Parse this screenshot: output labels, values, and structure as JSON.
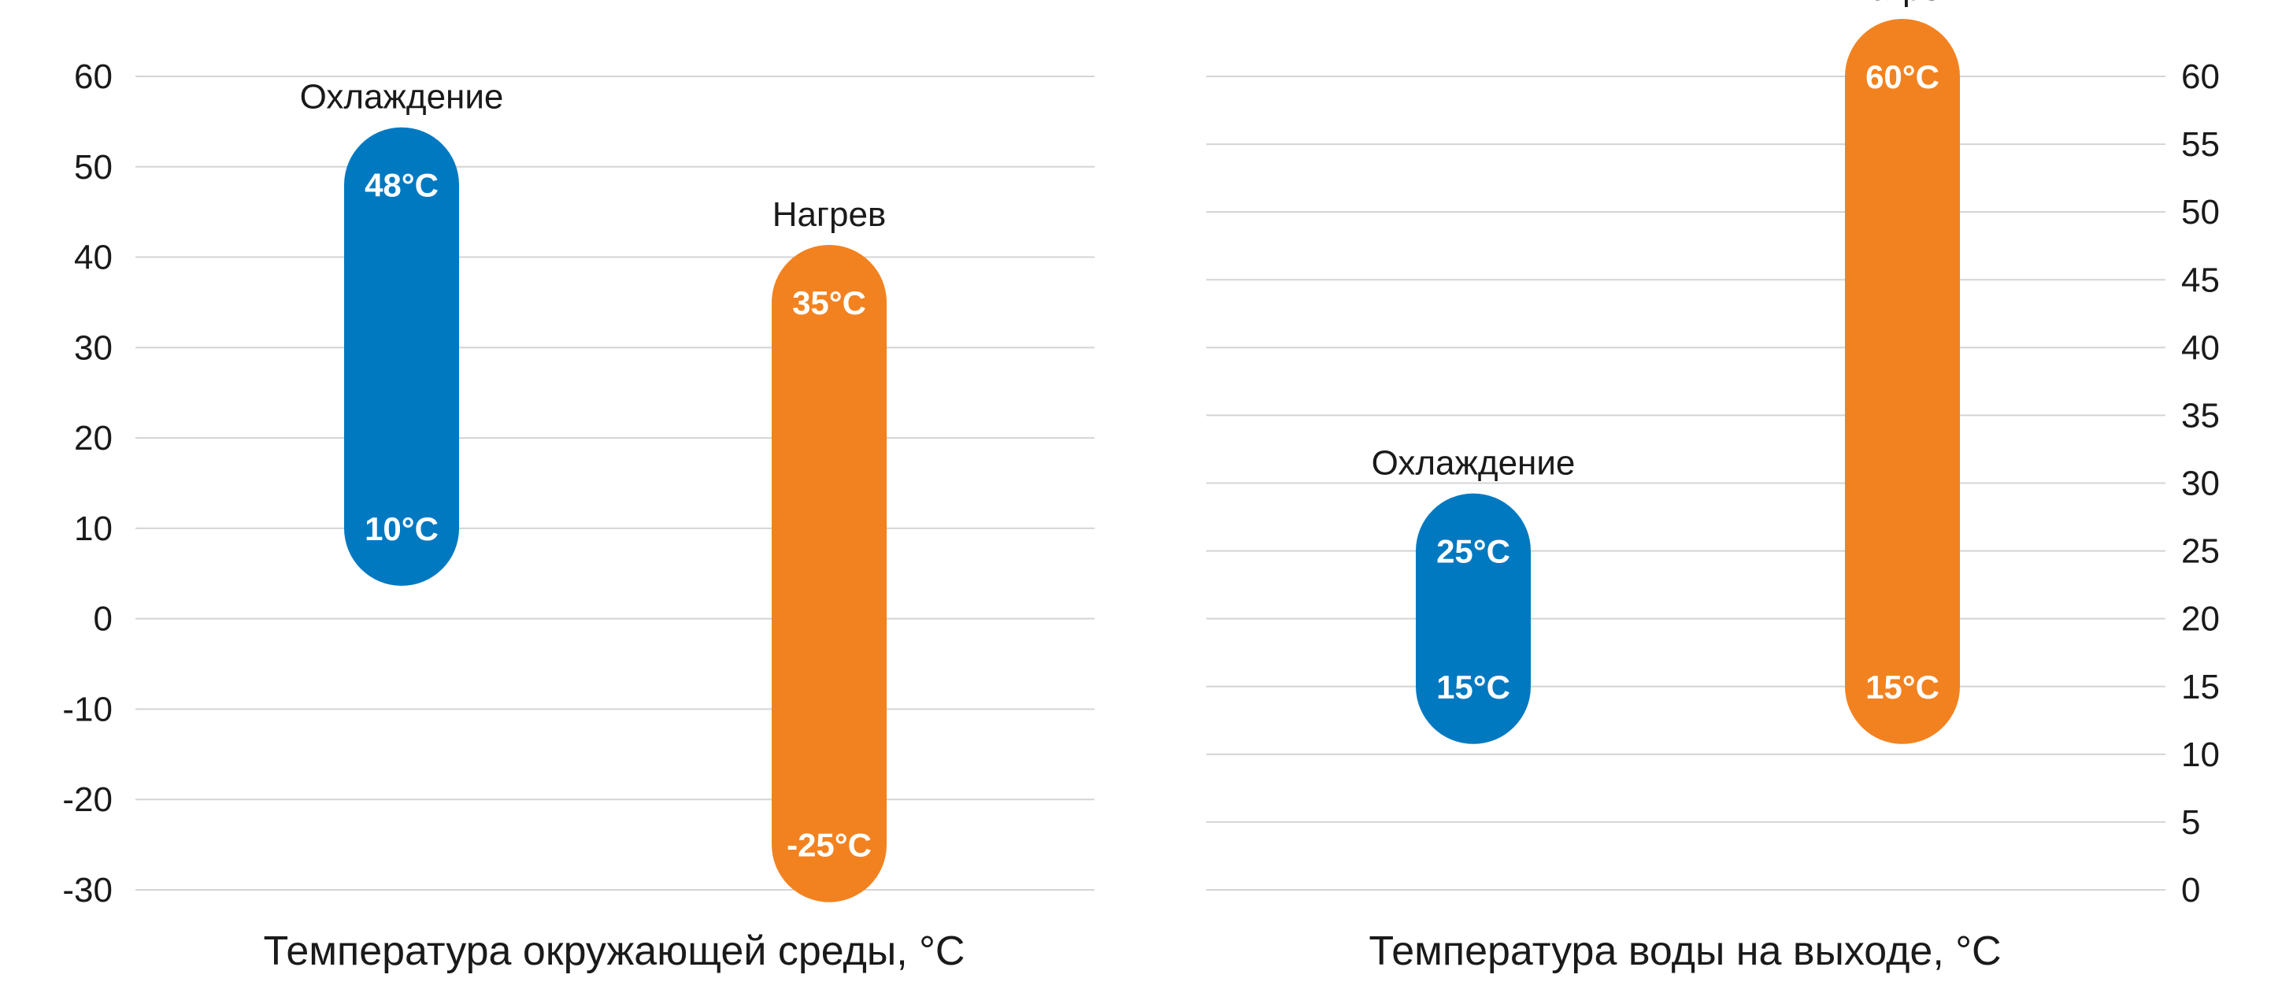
{
  "colors": {
    "cooling": "#0079C1",
    "heating": "#F28220",
    "grid": "#d4d4d4",
    "text": "#1a1a1a"
  },
  "chart_data": [
    {
      "type": "range-bar",
      "xlabel": "Температура окружающей среды, °С",
      "ylim": [
        -30,
        60
      ],
      "ytick_step": 10,
      "yticks": [
        "60",
        "50",
        "40",
        "30",
        "20",
        "10",
        "0",
        "-10",
        "-20",
        "-30"
      ],
      "axis_side": "left",
      "grid": true,
      "categories": [
        "Охлаждение",
        "Нагрев"
      ],
      "ranges": [
        {
          "category": "Охлаждение",
          "min": 10,
          "max": 48,
          "min_label": "10°C",
          "max_label": "48°C",
          "color": "#0079C1"
        },
        {
          "category": "Нагрев",
          "min": -25,
          "max": 35,
          "min_label": "-25°C",
          "max_label": "35°C",
          "color": "#F28220"
        }
      ]
    },
    {
      "type": "range-bar",
      "xlabel": "Температура воды на выходе, °С",
      "ylim": [
        0,
        60
      ],
      "ytick_step": 5,
      "yticks": [
        "60",
        "55",
        "50",
        "45",
        "40",
        "35",
        "30",
        "25",
        "20",
        "15",
        "10",
        "5",
        "0"
      ],
      "axis_side": "right",
      "grid": true,
      "categories": [
        "Охлаждение",
        "Нагрев"
      ],
      "ranges": [
        {
          "category": "Охлаждение",
          "min": 15,
          "max": 25,
          "min_label": "15°C",
          "max_label": "25°C",
          "color": "#0079C1"
        },
        {
          "category": "Нагрев",
          "min": 15,
          "max": 60,
          "min_label": "15°C",
          "max_label": "60°C",
          "color": "#F28220"
        }
      ]
    }
  ]
}
